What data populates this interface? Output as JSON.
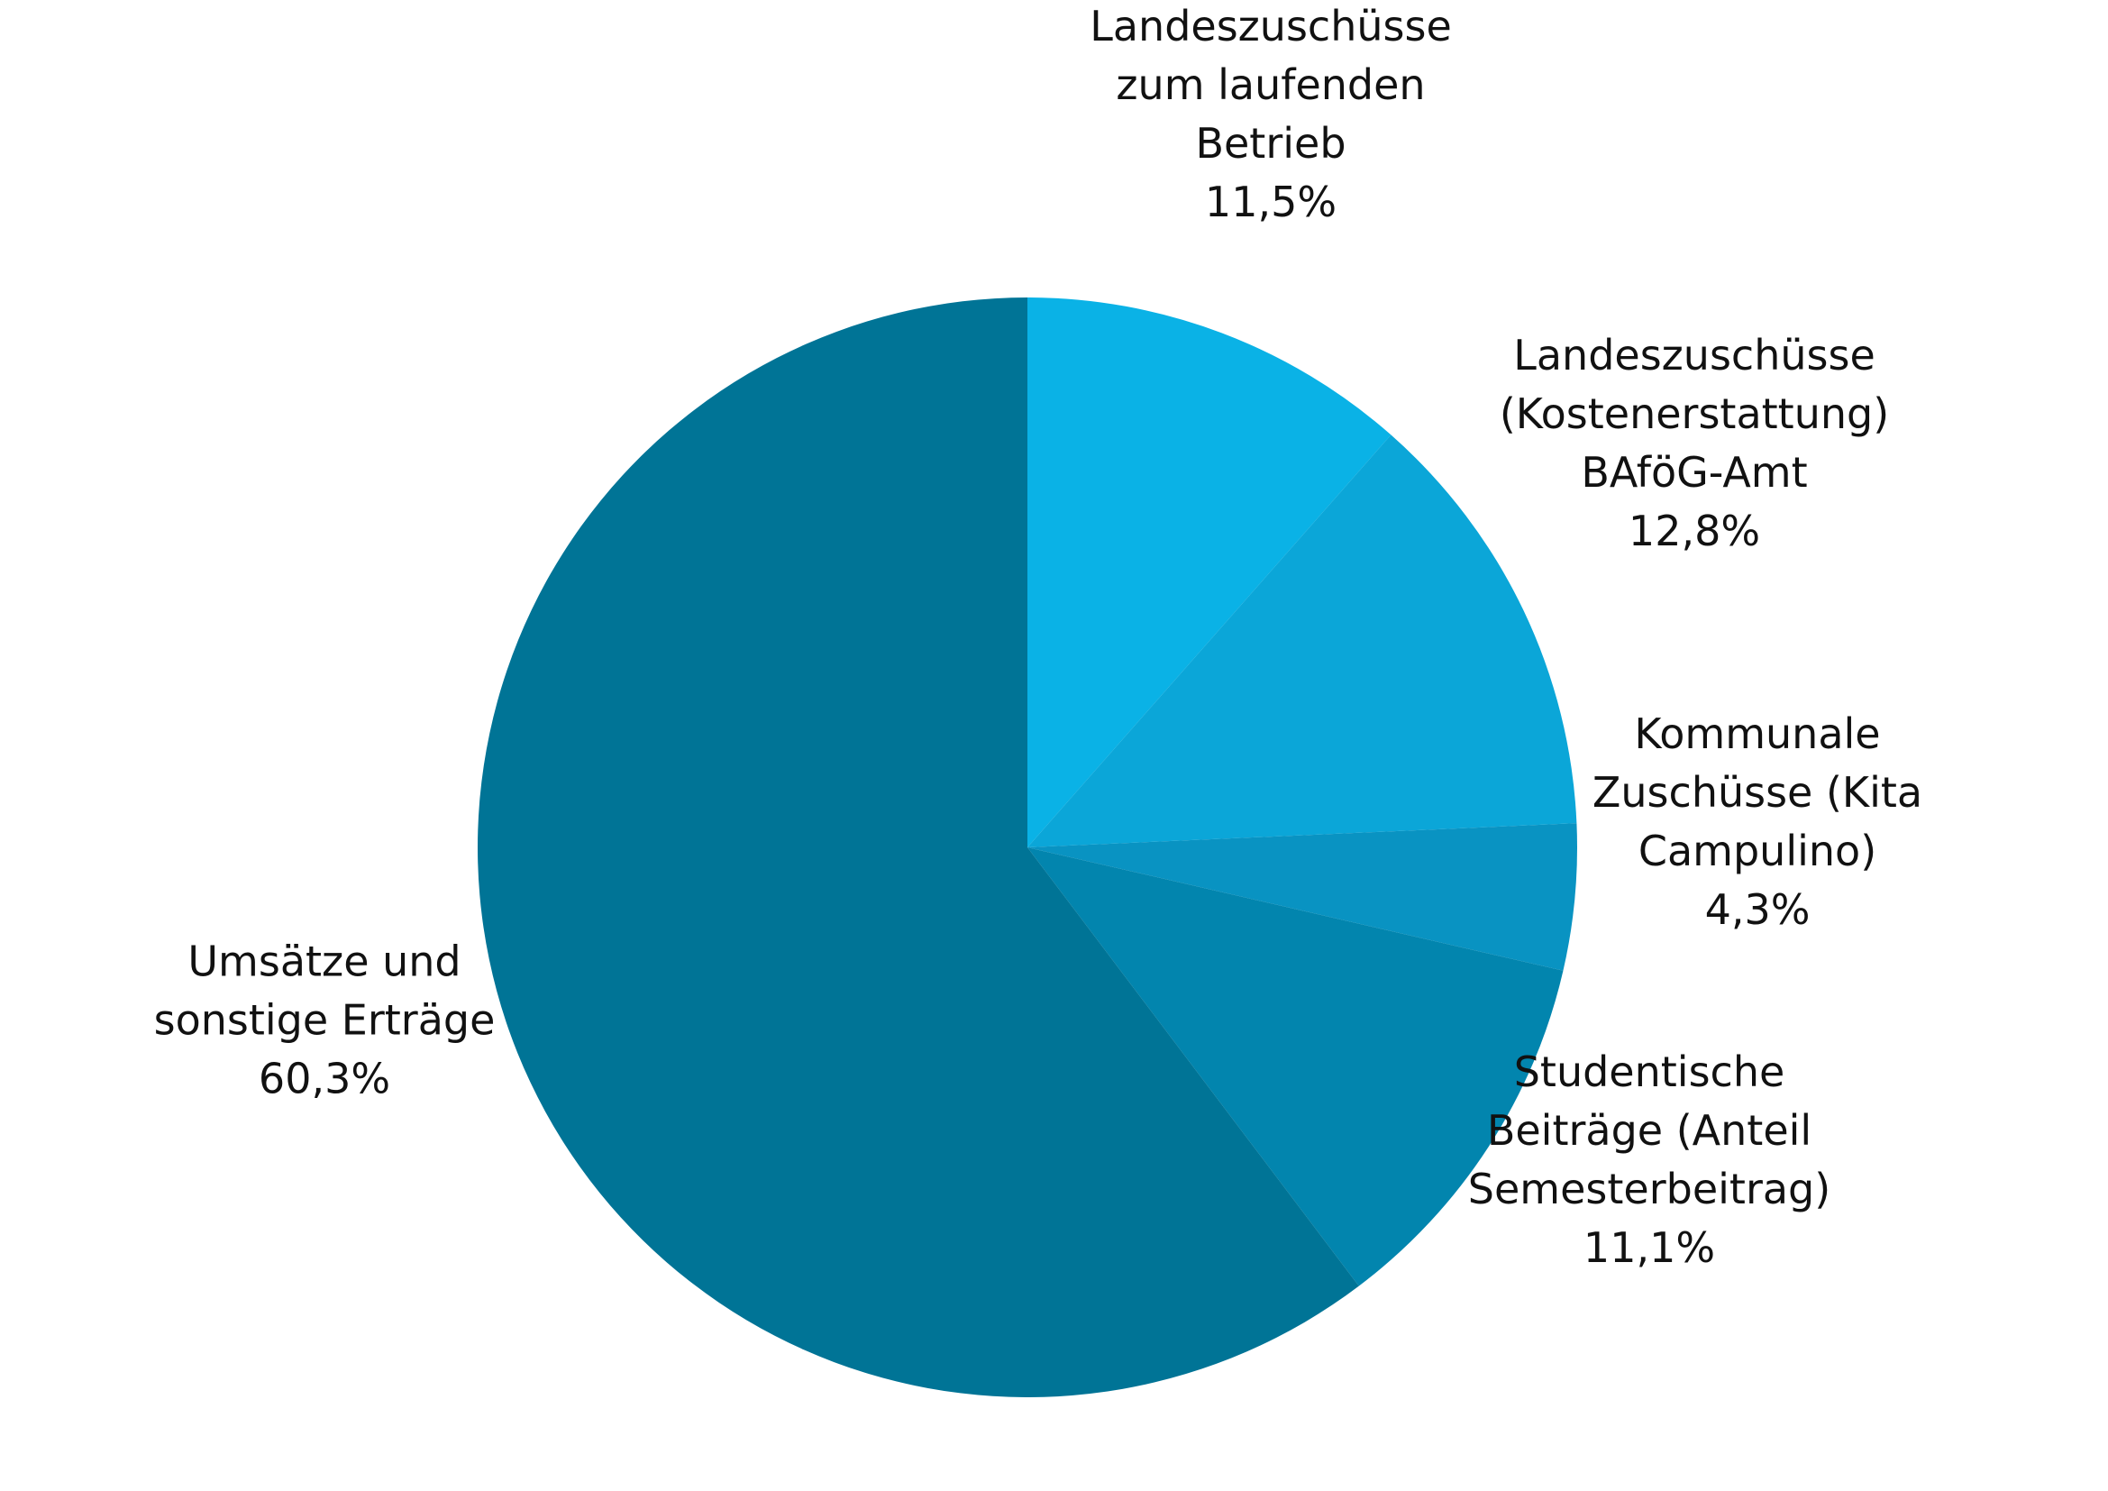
{
  "chart_data": {
    "type": "pie",
    "title": "",
    "start_angle_deg": 0,
    "direction": "clockwise",
    "slices": [
      {
        "label_lines": [
          "Landeszuschüsse",
          "zum laufenden",
          "Betrieb"
        ],
        "value_label": "11,5%",
        "value": 11.5,
        "color": "#0AB2E6"
      },
      {
        "label_lines": [
          "Landeszuschüsse",
          "(Kostenerstattung)",
          "BAföG-Amt"
        ],
        "value_label": "12,8%",
        "value": 12.8,
        "color": "#0BA6D8"
      },
      {
        "label_lines": [
          "Kommunale",
          "Zuschüsse (Kita",
          "Campulino)"
        ],
        "value_label": "4,3%",
        "value": 4.3,
        "color": "#0993C2"
      },
      {
        "label_lines": [
          "Studentische",
          "Beiträge (Anteil",
          "Semesterbeitrag)"
        ],
        "value_label": "11,1%",
        "value": 11.1,
        "color": "#0285AE"
      },
      {
        "label_lines": [
          "Umsätze und",
          "sonstige Erträge"
        ],
        "value_label": "60,3%",
        "value": 60.3,
        "color": "#007496"
      }
    ]
  }
}
